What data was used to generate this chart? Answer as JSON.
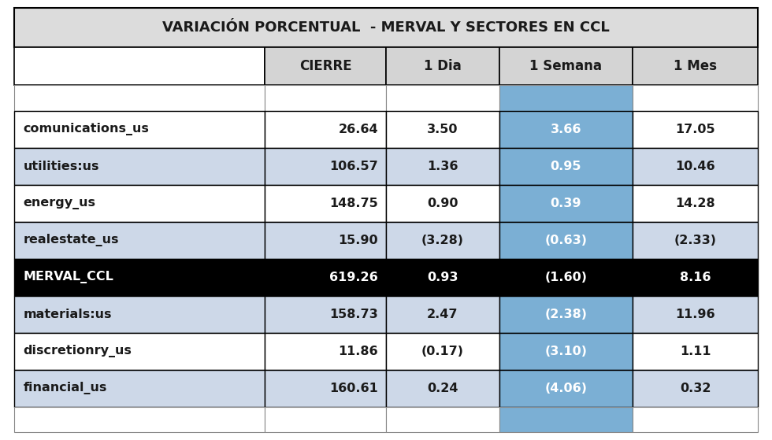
{
  "title": "VARIACIÓN PORCENTUAL  - MERVAL Y SECTORES EN CCL",
  "col_headers": [
    "",
    "CIERRE",
    "1 Dia",
    "1 Semana",
    "1 Mes"
  ],
  "rows": [
    {
      "label": "comunications_us",
      "cierre": "26.64",
      "dia": "3.50",
      "semana": "3.66",
      "mes": "17.05",
      "is_merval": false
    },
    {
      "label": "utilities:us",
      "cierre": "106.57",
      "dia": "1.36",
      "semana": "0.95",
      "mes": "10.46",
      "is_merval": false
    },
    {
      "label": "energy_us",
      "cierre": "148.75",
      "dia": "0.90",
      "semana": "0.39",
      "mes": "14.28",
      "is_merval": false
    },
    {
      "label": "realestate_us",
      "cierre": "15.90",
      "dia": "(3.28)",
      "semana": "(0.63)",
      "mes": "(2.33)",
      "is_merval": false
    },
    {
      "label": "MERVAL_CCL",
      "cierre": "619.26",
      "dia": "0.93",
      "semana": "(1.60)",
      "mes": "8.16",
      "is_merval": true
    },
    {
      "label": "materials:us",
      "cierre": "158.73",
      "dia": "2.47",
      "semana": "(2.38)",
      "mes": "11.96",
      "is_merval": false
    },
    {
      "label": "discretionry_us",
      "cierre": "11.86",
      "dia": "(0.17)",
      "semana": "(3.10)",
      "mes": "1.11",
      "is_merval": false
    },
    {
      "label": "financial_us",
      "cierre": "160.61",
      "dia": "0.24",
      "semana": "(4.06)",
      "mes": "0.32",
      "is_merval": false
    }
  ],
  "color_title_bg": "#dcdcdc",
  "color_header_bg": "#d4d4d4",
  "color_row_white": "#ffffff",
  "color_row_alt": "#cdd8e8",
  "color_merval_bg": "#000000",
  "color_merval_fg": "#ffffff",
  "color_semana_highlight": "#7bafd4",
  "color_semana_text": "#ffffff",
  "color_border_heavy": "#000000",
  "color_border_light": "#888888",
  "color_text": "#1a1a1a"
}
